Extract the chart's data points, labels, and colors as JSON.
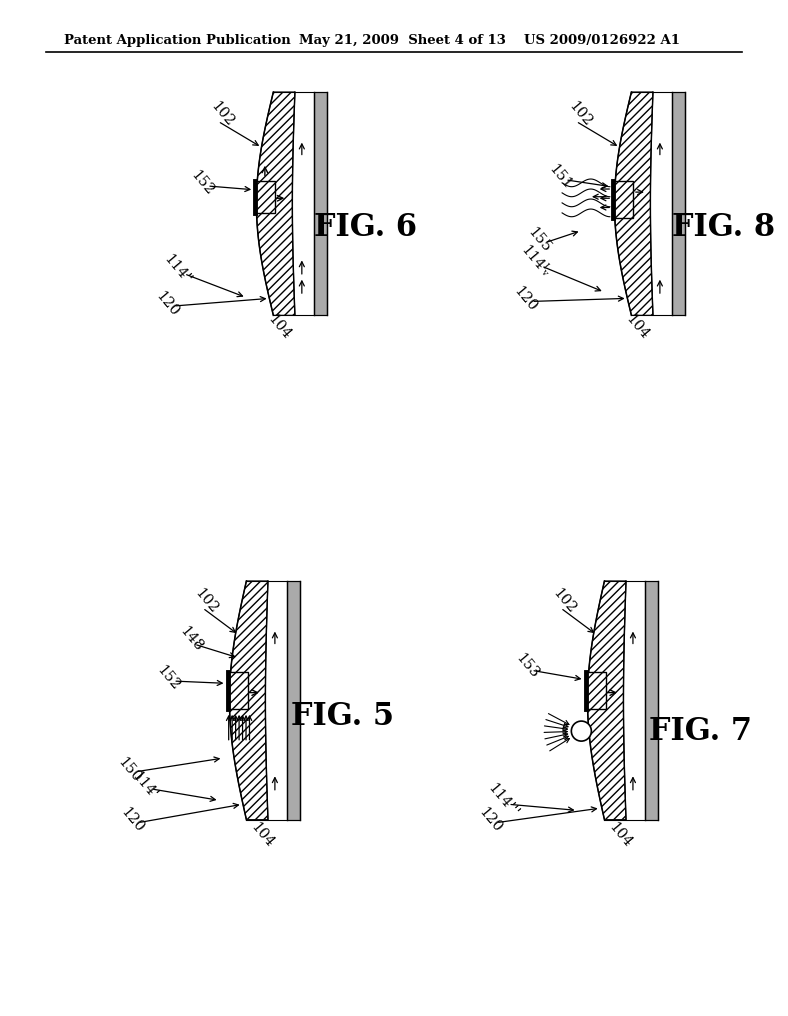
{
  "header_left": "Patent Application Publication",
  "header_mid": "May 21, 2009  Sheet 4 of 13",
  "header_right": "US 2009/0126922 A1",
  "bg_color": "#ffffff"
}
